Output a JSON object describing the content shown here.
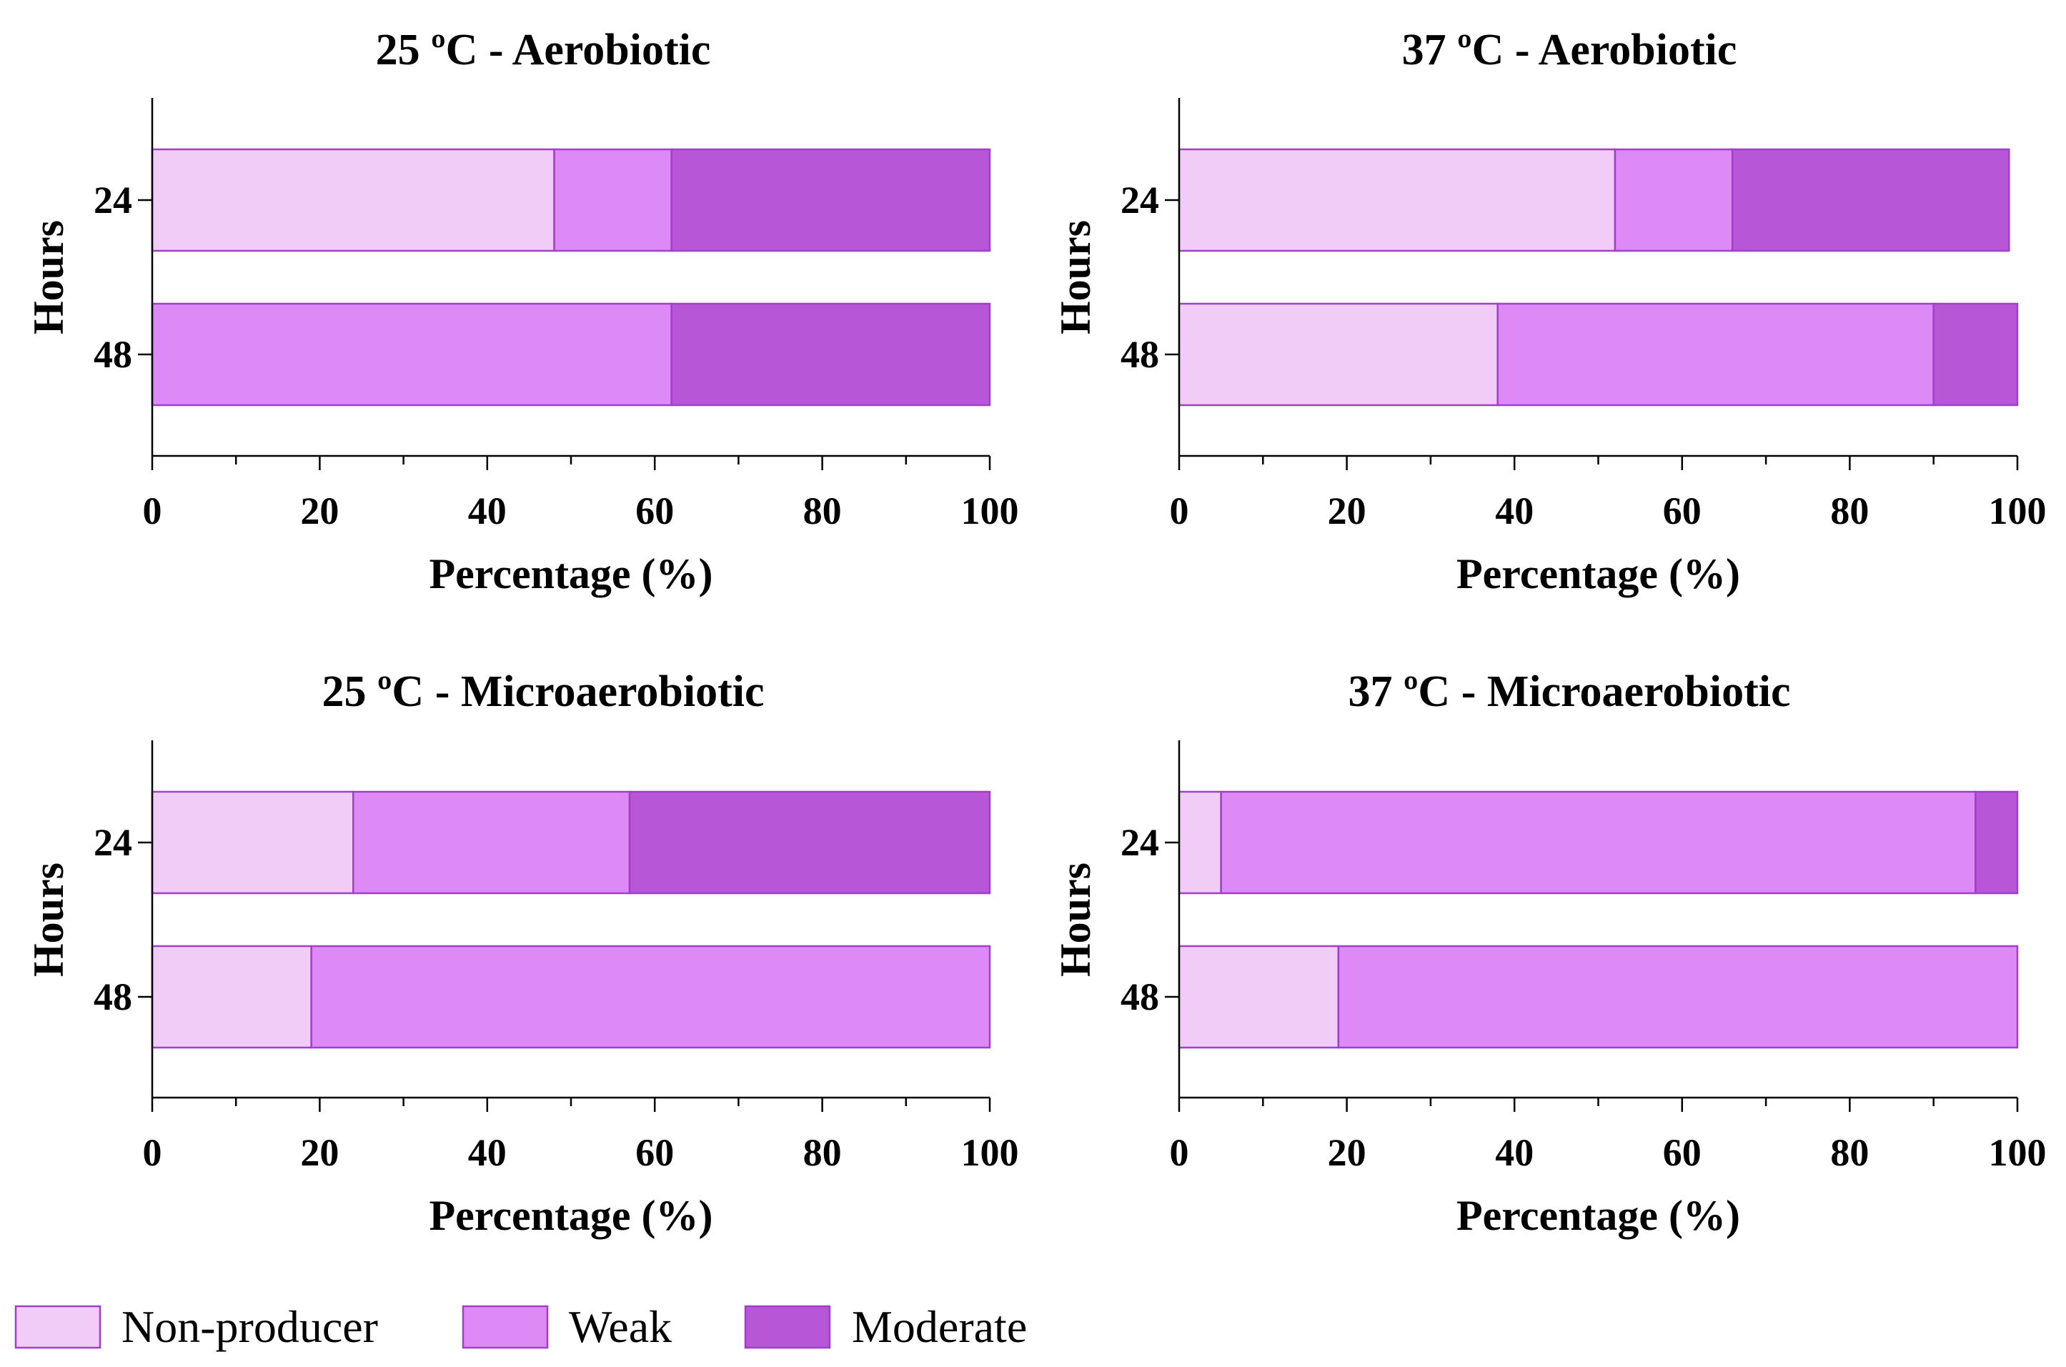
{
  "chart_data": [
    {
      "type": "bar",
      "orientation": "horizontal",
      "stacked": true,
      "title": "25 ºC - Aerobiotic",
      "xlabel": "Percentage (%)",
      "ylabel": "Hours",
      "xlim": [
        0,
        100
      ],
      "xticks": [
        "0",
        "20",
        "40",
        "60",
        "80",
        "100"
      ],
      "categories": [
        "24",
        "48"
      ],
      "series": [
        {
          "name": "Non-producer",
          "values": [
            48,
            0
          ]
        },
        {
          "name": "Weak",
          "values": [
            14,
            62
          ]
        },
        {
          "name": "Moderate",
          "values": [
            38,
            38
          ]
        }
      ]
    },
    {
      "type": "bar",
      "orientation": "horizontal",
      "stacked": true,
      "title": "37 ºC - Aerobiotic",
      "xlabel": "Percentage (%)",
      "ylabel": "Hours",
      "xlim": [
        0,
        100
      ],
      "xticks": [
        "0",
        "20",
        "40",
        "60",
        "80",
        "100"
      ],
      "categories": [
        "24",
        "48"
      ],
      "series": [
        {
          "name": "Non-producer",
          "values": [
            52,
            38
          ]
        },
        {
          "name": "Weak",
          "values": [
            14,
            52
          ]
        },
        {
          "name": "Moderate",
          "values": [
            33,
            10
          ]
        }
      ]
    },
    {
      "type": "bar",
      "orientation": "horizontal",
      "stacked": true,
      "title": "25 ºC - Microaerobiotic",
      "xlabel": "Percentage (%)",
      "ylabel": "Hours",
      "xlim": [
        0,
        100
      ],
      "xticks": [
        "0",
        "20",
        "40",
        "60",
        "80",
        "100"
      ],
      "categories": [
        "24",
        "48"
      ],
      "series": [
        {
          "name": "Non-producer",
          "values": [
            24,
            19
          ]
        },
        {
          "name": "Weak",
          "values": [
            33,
            81
          ]
        },
        {
          "name": "Moderate",
          "values": [
            43,
            0
          ]
        }
      ]
    },
    {
      "type": "bar",
      "orientation": "horizontal",
      "stacked": true,
      "title": "37 ºC - Microaerobiotic",
      "xlabel": "Percentage (%)",
      "ylabel": "Hours",
      "xlim": [
        0,
        100
      ],
      "xticks": [
        "0",
        "20",
        "40",
        "60",
        "80",
        "100"
      ],
      "categories": [
        "24",
        "48"
      ],
      "series": [
        {
          "name": "Non-producer",
          "values": [
            5,
            19
          ]
        },
        {
          "name": "Weak",
          "values": [
            90,
            81
          ]
        },
        {
          "name": "Moderate",
          "values": [
            5,
            0
          ]
        }
      ]
    }
  ],
  "legend": {
    "items": [
      {
        "label": "Non-producer",
        "color": "#f0ccf7"
      },
      {
        "label": "Weak",
        "color": "#dd8af6"
      },
      {
        "label": "Moderate",
        "color": "#b757d8"
      }
    ]
  },
  "colors": {
    "Non-producer": "#f0ccf7",
    "Weak": "#dd8af6",
    "Moderate": "#b757d8",
    "bar_edge": "#a23fc9",
    "axis": "#000000"
  }
}
